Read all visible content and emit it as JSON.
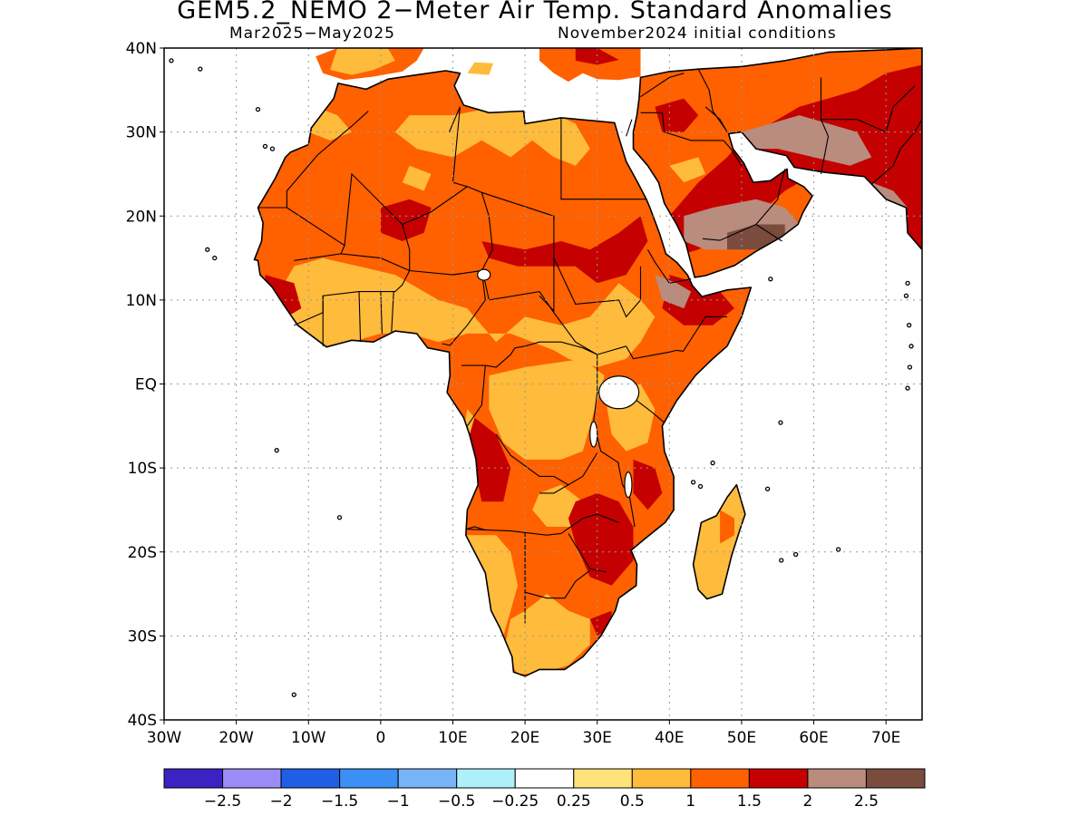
{
  "title": "GEM5.2_NEMO 2−Meter Air Temp. Standard Anomalies",
  "period": "Mar2025−May2025",
  "initial_conditions": "November2024 initial conditions",
  "map": {
    "lon_range": [
      -30,
      75
    ],
    "lat_range": [
      -40,
      40
    ],
    "lon_ticks": [
      {
        "value": -30,
        "label": "30W"
      },
      {
        "value": -20,
        "label": "20W"
      },
      {
        "value": -10,
        "label": "10W"
      },
      {
        "value": 0,
        "label": "0"
      },
      {
        "value": 10,
        "label": "10E"
      },
      {
        "value": 20,
        "label": "20E"
      },
      {
        "value": 30,
        "label": "30E"
      },
      {
        "value": 40,
        "label": "40E"
      },
      {
        "value": 50,
        "label": "50E"
      },
      {
        "value": 60,
        "label": "60E"
      },
      {
        "value": 70,
        "label": "70E"
      }
    ],
    "lat_ticks": [
      {
        "value": 40,
        "label": "40N"
      },
      {
        "value": 30,
        "label": "30N"
      },
      {
        "value": 20,
        "label": "20N"
      },
      {
        "value": 10,
        "label": "10N"
      },
      {
        "value": 0,
        "label": "EQ"
      },
      {
        "value": -10,
        "label": "10S"
      },
      {
        "value": -20,
        "label": "20S"
      },
      {
        "value": -30,
        "label": "30S"
      },
      {
        "value": -40,
        "label": "40S"
      }
    ],
    "grid": "dotted"
  },
  "colorbar": {
    "colors": [
      "#3b22c2",
      "#9b8cf5",
      "#1f5fe6",
      "#3b8ff5",
      "#77b5f8",
      "#aef0fa",
      "#ffffff",
      "#ffe27a",
      "#ffbb3c",
      "#ff6000",
      "#c40000",
      "#b98c7e",
      "#7a4c3e"
    ],
    "labels": [
      "−2.5",
      "−2",
      "−1.5",
      "−1",
      "−0.5",
      "−0.25",
      "0.25",
      "0.5",
      "1",
      "1.5",
      "2",
      "2.5"
    ]
  },
  "anomaly_classes": {
    "0.5-1": "#ffbb3c",
    "1-1.5": "#ff6000",
    "1.5-2": "#c40000",
    "2-2.5": "#b98c7e",
    "2.5+": "#7a4c3e"
  }
}
